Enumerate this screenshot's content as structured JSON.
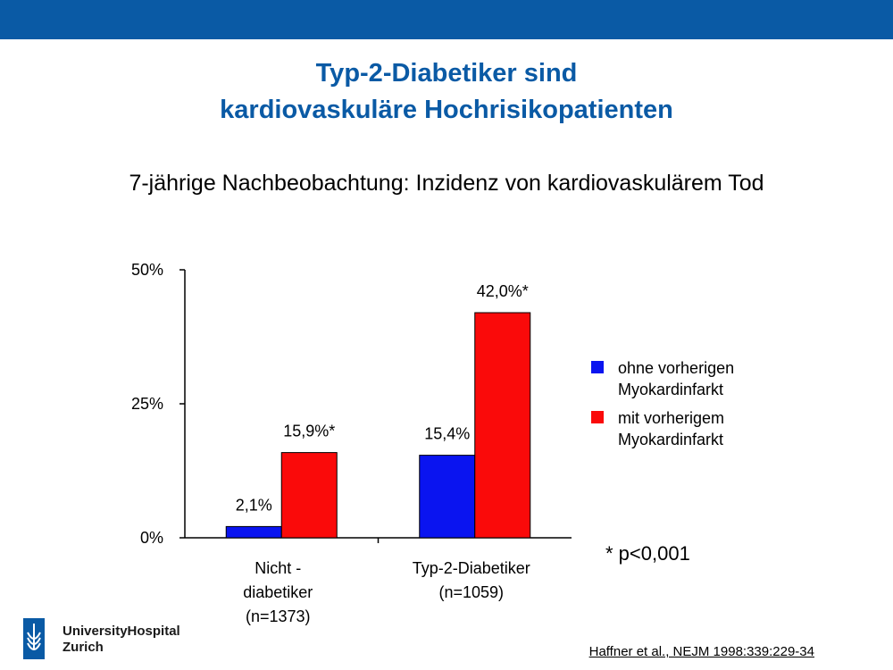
{
  "slide": {
    "title_line1": "Typ-2-Diabetiker sind",
    "title_line2": "kardiovaskuläre Hochrisikopatienten",
    "subtitle": "7-jährige Nachbeobachtung: Inzidenz von kardiovaskulärem Tod",
    "footnote": "* p<0,001",
    "citation": "Haffner et al., NEJM 1998:339:229-34",
    "logo_line1": "UniversityHospital",
    "logo_line2": "Zurich",
    "colors": {
      "header_bar": "#0a5aa5",
      "title": "#0a5aa5"
    }
  },
  "chart_data": {
    "type": "bar",
    "title": "",
    "xlabel": "",
    "ylabel": "",
    "ylim": [
      0,
      50
    ],
    "yticks": [
      "0%",
      "25%",
      "50%"
    ],
    "ytick_values": [
      0,
      25,
      50
    ],
    "categories": [
      [
        "Nicht -",
        "diabetiker",
        "(n=1373)"
      ],
      [
        "Typ-2-Diabetiker",
        "(n=1059)"
      ]
    ],
    "series": [
      {
        "name": "ohne vorherigen Myokardinfarkt",
        "legend_lines": [
          "ohne vorherigen",
          "Myokardinfarkt"
        ],
        "color": "#0a14f0",
        "values": [
          2.1,
          15.4
        ],
        "labels": [
          "2,1%",
          "15,4%"
        ]
      },
      {
        "name": "mit vorherigem Myokardinfarkt",
        "legend_lines": [
          "mit vorherigem",
          "Myokardinfarkt"
        ],
        "color": "#fa0a0a",
        "values": [
          15.9,
          42.0
        ],
        "labels": [
          "15,9%*",
          "42,0%*"
        ]
      }
    ],
    "legend_position": "right",
    "grid": false
  }
}
